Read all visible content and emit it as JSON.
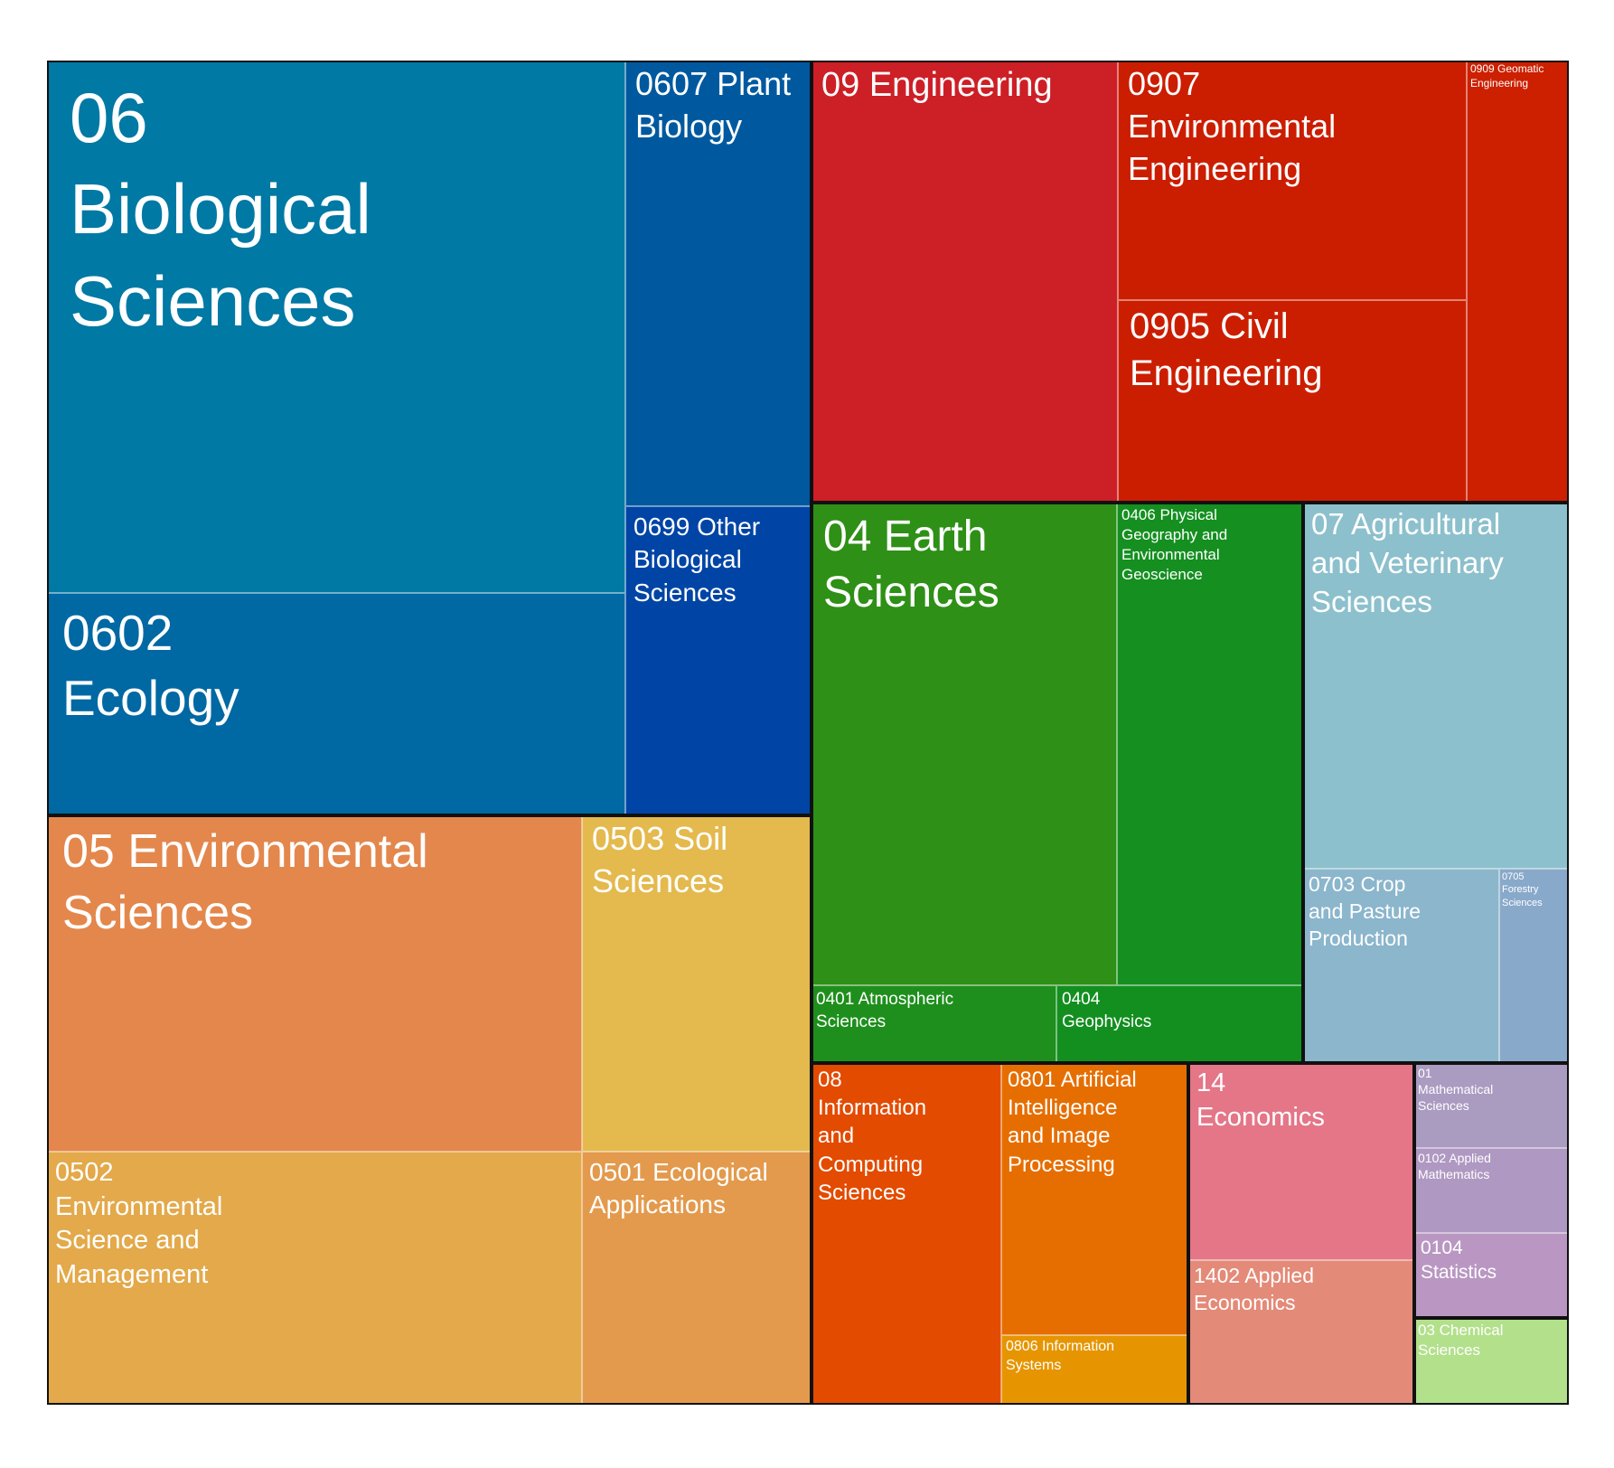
{
  "chart_data": {
    "type": "treemap",
    "title": "",
    "groups": [
      {
        "code": "06",
        "name": "Biological Sciences",
        "color": "#0079A4",
        "children": [
          {
            "code": "0602",
            "name": "Ecology",
            "color": "#0068A3"
          },
          {
            "code": "0607",
            "name": "Plant Biology",
            "color": "#00599F"
          },
          {
            "code": "0699",
            "name": "Other Biological Sciences",
            "color": "#0045A5"
          }
        ]
      },
      {
        "code": "05",
        "name": "Environmental Sciences",
        "color": "#E4874C",
        "children": [
          {
            "code": "0503",
            "name": "Soil Sciences",
            "color": "#E4B94D"
          },
          {
            "code": "0502",
            "name": "Environmental Science and Management",
            "color": "#E3A94A"
          },
          {
            "code": "0501",
            "name": "Ecological Applications",
            "color": "#E39A4D"
          }
        ]
      },
      {
        "code": "09",
        "name": "Engineering",
        "color": "#CD1F26",
        "children": [
          {
            "code": "0907",
            "name": "Environmental Engineering",
            "color": "#CB1D00"
          },
          {
            "code": "0905",
            "name": "Civil Engineering",
            "color": "#CB1E00"
          },
          {
            "code": "0909",
            "name": "Geomatic Engineering",
            "color": "#CC2001"
          }
        ]
      },
      {
        "code": "04",
        "name": "Earth Sciences",
        "color": "#2E9016",
        "children": [
          {
            "code": "0406",
            "name": "Physical Geography and Environmental Geoscience",
            "color": "#148F20"
          },
          {
            "code": "0401",
            "name": "Atmospheric Sciences",
            "color": "#1E8F1C"
          },
          {
            "code": "0404",
            "name": "Geophysics",
            "color": "#138F20"
          }
        ]
      },
      {
        "code": "07",
        "name": "Agricultural and Veterinary Sciences",
        "color": "#8CC0CC",
        "children": [
          {
            "code": "0703",
            "name": "Crop and Pasture Production",
            "color": "#8BB6CC"
          },
          {
            "code": "0705",
            "name": "Forestry Sciences",
            "color": "#89A9CB"
          }
        ]
      },
      {
        "code": "08",
        "name": "Information and Computing Sciences",
        "color": "#E34B01",
        "children": [
          {
            "code": "0801",
            "name": "Artificial Intelligence and Image Processing",
            "color": "#E66E01"
          },
          {
            "code": "0806",
            "name": "Information Systems",
            "color": "#E69501"
          }
        ]
      },
      {
        "code": "14",
        "name": "Economics",
        "color": "#E47688",
        "children": [
          {
            "code": "1402",
            "name": "Applied Economics",
            "color": "#E48A78"
          }
        ]
      },
      {
        "code": "01",
        "name": "Mathematical Sciences",
        "color": "#AA9BC1",
        "children": [
          {
            "code": "0102",
            "name": "Applied Mathematics",
            "color": "#AF98C1"
          },
          {
            "code": "0104",
            "name": "Statistics",
            "color": "#B997C2"
          }
        ]
      },
      {
        "code": "03",
        "name": "Chemical Sciences",
        "color": "#B2E08B",
        "children": []
      }
    ]
  },
  "labels": {
    "t06": "06 Biological Sciences",
    "t0602": "0602 Ecology",
    "t0607": "0607 Plant Biology",
    "t0699": "0699 Other Biological Sciences",
    "t05": "05 Environmental Sciences",
    "t0503": "0503 Soil Sciences",
    "t0502": "0502 Environmental Science and Management",
    "t0501": "0501 Ecological Applications",
    "t09": "09 Engineering",
    "t0907": "0907 Environmental Engineering",
    "t0905": "0905 Civil Engineering",
    "t0909": "0909 Geomatic Engineering",
    "t04": "04 Earth Sciences",
    "t0406": "0406 Physical Geography and Environmental Geoscience",
    "t0401": "0401 Atmospheric Sciences",
    "t0404": "0404 Geophysics",
    "t07": "07 Agricultural and Veterinary Sciences",
    "t0703": "0703 Crop and Pasture Production",
    "t0705": "0705 Forestry Sciences",
    "t08": "08 Information and Computing Sciences",
    "t0801": "0801 Artificial Intelligence and Image Processing",
    "t0806": "0806 Information Systems",
    "t14": "14 Economics",
    "t1402": "1402 Applied Economics",
    "t01": "01 Mathematical Sciences",
    "t0102": "0102 Applied Mathematics",
    "t0104": "0104 Statistics",
    "t03": "03 Chemical Sciences"
  }
}
